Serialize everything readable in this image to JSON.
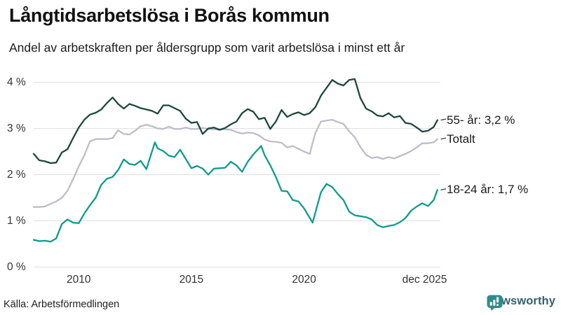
{
  "header": {
    "title": "Långtidsarbetslösa i Borås kommun",
    "subtitle": "Andel av arbetskraften per åldersgrupp som varit arbetslösa i minst ett år"
  },
  "footer": {
    "source": "Källa: Arbetsförmedlingen",
    "brand": "Newsworthy",
    "brand_icon": "newsworthy-speech-bubble-chart-logo",
    "brand_color": "#2f8b8b",
    "brand_text_color": "#33616d"
  },
  "chart_data": {
    "type": "line",
    "title": "Långtidsarbetslösa i Borås kommun",
    "subtitle": "Andel av arbetskraften per åldersgrupp som varit arbetslösa i minst ett år",
    "unit": "%",
    "grid": true,
    "legend_position": "end-of-line-labels-right",
    "gridline_color": "#dfdfe3",
    "x_axis": {
      "range": [
        2008.0,
        2026.05
      ],
      "ticks": [
        {
          "label": "2010",
          "t": 2010
        },
        {
          "label": "2015",
          "t": 2015
        },
        {
          "label": "2020",
          "t": 2020
        },
        {
          "label": "dec 2025",
          "t": 2025.35
        }
      ]
    },
    "y_axis": {
      "range": [
        0,
        4.35
      ],
      "ticks": [
        {
          "label": "0 %",
          "value": 0
        },
        {
          "label": "1 %",
          "value": 1
        },
        {
          "label": "2 %",
          "value": 2
        },
        {
          "label": "3 %",
          "value": 3
        },
        {
          "label": "4 %",
          "value": 4
        }
      ]
    },
    "series": [
      {
        "name": "Totalt",
        "end_label": "Totalt",
        "color": "#bfbcca",
        "points": [
          [
            2008.0,
            1.3
          ],
          [
            2008.25,
            1.3
          ],
          [
            2008.5,
            1.31
          ],
          [
            2008.75,
            1.37
          ],
          [
            2009.0,
            1.42
          ],
          [
            2009.25,
            1.5
          ],
          [
            2009.5,
            1.65
          ],
          [
            2009.75,
            1.9
          ],
          [
            2010.0,
            2.18
          ],
          [
            2010.25,
            2.42
          ],
          [
            2010.5,
            2.72
          ],
          [
            2010.75,
            2.77
          ],
          [
            2011.0,
            2.77
          ],
          [
            2011.25,
            2.77
          ],
          [
            2011.5,
            2.79
          ],
          [
            2011.75,
            2.96
          ],
          [
            2012.0,
            2.88
          ],
          [
            2012.25,
            2.87
          ],
          [
            2012.5,
            2.95
          ],
          [
            2012.75,
            3.05
          ],
          [
            2013.0,
            3.08
          ],
          [
            2013.25,
            3.05
          ],
          [
            2013.5,
            3.0
          ],
          [
            2013.75,
            2.99
          ],
          [
            2014.0,
            3.04
          ],
          [
            2014.25,
            2.99
          ],
          [
            2014.5,
            2.99
          ],
          [
            2014.75,
            3.02
          ],
          [
            2015.0,
            2.99
          ],
          [
            2015.25,
            2.99
          ],
          [
            2015.5,
            3.01
          ],
          [
            2015.75,
            2.99
          ],
          [
            2016.0,
            2.98
          ],
          [
            2016.25,
            2.98
          ],
          [
            2016.5,
            2.98
          ],
          [
            2016.75,
            2.97
          ],
          [
            2017.0,
            2.92
          ],
          [
            2017.25,
            2.89
          ],
          [
            2017.5,
            2.91
          ],
          [
            2017.75,
            2.9
          ],
          [
            2018.0,
            2.85
          ],
          [
            2018.25,
            2.76
          ],
          [
            2018.5,
            2.72
          ],
          [
            2018.75,
            2.71
          ],
          [
            2019.0,
            2.69
          ],
          [
            2019.25,
            2.59
          ],
          [
            2019.5,
            2.62
          ],
          [
            2019.75,
            2.56
          ],
          [
            2020.0,
            2.5
          ],
          [
            2020.25,
            2.45
          ],
          [
            2020.5,
            2.9
          ],
          [
            2020.75,
            3.15
          ],
          [
            2021.0,
            3.17
          ],
          [
            2021.25,
            3.19
          ],
          [
            2021.5,
            3.14
          ],
          [
            2021.75,
            3.1
          ],
          [
            2022.0,
            2.94
          ],
          [
            2022.25,
            2.81
          ],
          [
            2022.5,
            2.6
          ],
          [
            2022.75,
            2.43
          ],
          [
            2023.0,
            2.36
          ],
          [
            2023.25,
            2.38
          ],
          [
            2023.5,
            2.34
          ],
          [
            2023.75,
            2.38
          ],
          [
            2024.0,
            2.35
          ],
          [
            2024.25,
            2.4
          ],
          [
            2024.5,
            2.45
          ],
          [
            2024.75,
            2.51
          ],
          [
            2025.0,
            2.59
          ],
          [
            2025.25,
            2.68
          ],
          [
            2025.5,
            2.68
          ],
          [
            2025.75,
            2.7
          ],
          [
            2025.92,
            2.77
          ]
        ]
      },
      {
        "name": "18-24 år",
        "end_label": "18-24 år: 1,7 %",
        "end_value_label": "1,7 %",
        "color": "#0f9b8a",
        "points": [
          [
            2008.0,
            0.59
          ],
          [
            2008.25,
            0.56
          ],
          [
            2008.5,
            0.57
          ],
          [
            2008.75,
            0.55
          ],
          [
            2009.0,
            0.62
          ],
          [
            2009.25,
            0.93
          ],
          [
            2009.5,
            1.03
          ],
          [
            2009.75,
            0.96
          ],
          [
            2010.0,
            0.95
          ],
          [
            2010.25,
            1.16
          ],
          [
            2010.5,
            1.34
          ],
          [
            2010.75,
            1.5
          ],
          [
            2011.0,
            1.78
          ],
          [
            2011.25,
            1.91
          ],
          [
            2011.5,
            1.95
          ],
          [
            2011.75,
            2.1
          ],
          [
            2012.0,
            2.33
          ],
          [
            2012.25,
            2.23
          ],
          [
            2012.5,
            2.21
          ],
          [
            2012.75,
            2.3
          ],
          [
            2013.0,
            2.12
          ],
          [
            2013.38,
            2.7
          ],
          [
            2013.5,
            2.57
          ],
          [
            2013.75,
            2.51
          ],
          [
            2014.0,
            2.41
          ],
          [
            2014.25,
            2.38
          ],
          [
            2014.5,
            2.54
          ],
          [
            2014.75,
            2.34
          ],
          [
            2015.0,
            2.14
          ],
          [
            2015.25,
            2.19
          ],
          [
            2015.5,
            2.13
          ],
          [
            2015.75,
            2.0
          ],
          [
            2016.0,
            2.13
          ],
          [
            2016.25,
            2.14
          ],
          [
            2016.5,
            2.15
          ],
          [
            2016.75,
            2.28
          ],
          [
            2017.0,
            2.2
          ],
          [
            2017.25,
            2.06
          ],
          [
            2017.5,
            2.28
          ],
          [
            2017.75,
            2.44
          ],
          [
            2018.1,
            2.62
          ],
          [
            2018.25,
            2.42
          ],
          [
            2018.5,
            2.2
          ],
          [
            2018.75,
            1.95
          ],
          [
            2019.0,
            1.65
          ],
          [
            2019.25,
            1.64
          ],
          [
            2019.5,
            1.45
          ],
          [
            2019.75,
            1.42
          ],
          [
            2020.0,
            1.27
          ],
          [
            2020.38,
            0.96
          ],
          [
            2020.75,
            1.62
          ],
          [
            2021.0,
            1.8
          ],
          [
            2021.25,
            1.73
          ],
          [
            2021.5,
            1.58
          ],
          [
            2021.75,
            1.45
          ],
          [
            2022.0,
            1.2
          ],
          [
            2022.25,
            1.12
          ],
          [
            2022.5,
            1.1
          ],
          [
            2022.75,
            1.08
          ],
          [
            2023.0,
            1.03
          ],
          [
            2023.25,
            0.91
          ],
          [
            2023.5,
            0.86
          ],
          [
            2023.75,
            0.89
          ],
          [
            2024.0,
            0.91
          ],
          [
            2024.25,
            0.97
          ],
          [
            2024.5,
            1.06
          ],
          [
            2024.75,
            1.22
          ],
          [
            2025.0,
            1.31
          ],
          [
            2025.25,
            1.38
          ],
          [
            2025.5,
            1.32
          ],
          [
            2025.75,
            1.45
          ],
          [
            2025.92,
            1.67
          ]
        ]
      },
      {
        "name": "55- år",
        "end_label": "55- år: 3,2 %",
        "end_value_label": "3,2 %",
        "color": "#1d473c",
        "points": [
          [
            2008.0,
            2.45
          ],
          [
            2008.25,
            2.31
          ],
          [
            2008.5,
            2.29
          ],
          [
            2008.75,
            2.25
          ],
          [
            2009.0,
            2.26
          ],
          [
            2009.25,
            2.48
          ],
          [
            2009.5,
            2.55
          ],
          [
            2009.75,
            2.79
          ],
          [
            2010.0,
            3.02
          ],
          [
            2010.25,
            3.19
          ],
          [
            2010.5,
            3.3
          ],
          [
            2010.75,
            3.34
          ],
          [
            2011.0,
            3.41
          ],
          [
            2011.25,
            3.55
          ],
          [
            2011.5,
            3.67
          ],
          [
            2011.75,
            3.53
          ],
          [
            2012.0,
            3.43
          ],
          [
            2012.25,
            3.53
          ],
          [
            2012.5,
            3.49
          ],
          [
            2012.75,
            3.44
          ],
          [
            2013.0,
            3.41
          ],
          [
            2013.25,
            3.38
          ],
          [
            2013.5,
            3.32
          ],
          [
            2013.75,
            3.5
          ],
          [
            2014.0,
            3.5
          ],
          [
            2014.25,
            3.44
          ],
          [
            2014.5,
            3.38
          ],
          [
            2014.75,
            3.21
          ],
          [
            2015.0,
            3.12
          ],
          [
            2015.25,
            3.14
          ],
          [
            2015.5,
            2.88
          ],
          [
            2015.75,
            3.0
          ],
          [
            2016.0,
            3.02
          ],
          [
            2016.25,
            2.97
          ],
          [
            2016.5,
            3.01
          ],
          [
            2016.75,
            3.09
          ],
          [
            2017.0,
            3.15
          ],
          [
            2017.25,
            3.33
          ],
          [
            2017.5,
            3.42
          ],
          [
            2017.75,
            3.36
          ],
          [
            2018.0,
            3.2
          ],
          [
            2018.25,
            3.23
          ],
          [
            2018.5,
            2.99
          ],
          [
            2018.75,
            3.15
          ],
          [
            2019.0,
            3.4
          ],
          [
            2019.25,
            3.25
          ],
          [
            2019.5,
            3.31
          ],
          [
            2019.75,
            3.35
          ],
          [
            2020.0,
            3.29
          ],
          [
            2020.25,
            3.33
          ],
          [
            2020.5,
            3.46
          ],
          [
            2020.75,
            3.71
          ],
          [
            2021.0,
            3.88
          ],
          [
            2021.25,
            4.05
          ],
          [
            2021.5,
            3.97
          ],
          [
            2021.75,
            3.93
          ],
          [
            2022.0,
            4.05
          ],
          [
            2022.25,
            4.07
          ],
          [
            2022.5,
            3.66
          ],
          [
            2022.75,
            3.43
          ],
          [
            2023.0,
            3.37
          ],
          [
            2023.25,
            3.28
          ],
          [
            2023.5,
            3.26
          ],
          [
            2023.75,
            3.33
          ],
          [
            2024.0,
            3.24
          ],
          [
            2024.25,
            3.27
          ],
          [
            2024.5,
            3.12
          ],
          [
            2024.75,
            3.1
          ],
          [
            2025.0,
            3.02
          ],
          [
            2025.25,
            2.93
          ],
          [
            2025.5,
            2.95
          ],
          [
            2025.75,
            3.03
          ],
          [
            2025.92,
            3.18
          ]
        ]
      }
    ]
  }
}
